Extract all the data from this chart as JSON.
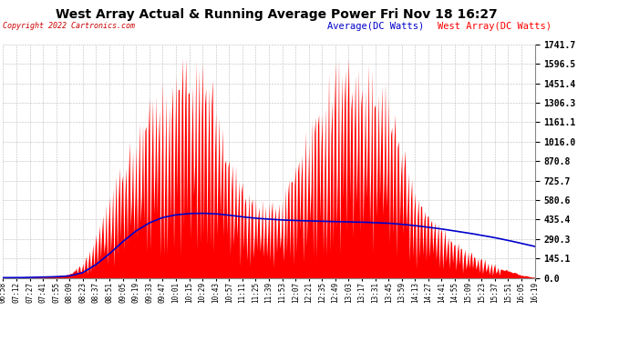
{
  "title": "West Array Actual & Running Average Power Fri Nov 18 16:27",
  "copyright": "Copyright 2022 Cartronics.com",
  "legend_avg": "Average(DC Watts)",
  "legend_west": "West Array(DC Watts)",
  "ylabel_right_ticks": [
    0.0,
    145.1,
    290.3,
    435.4,
    580.6,
    725.7,
    870.8,
    1016.0,
    1161.1,
    1306.3,
    1451.4,
    1596.5,
    1741.7
  ],
  "ymax": 1741.7,
  "ymin": 0.0,
  "background_color": "#ffffff",
  "grid_color": "#bbbbbb",
  "fill_color": "#ff0000",
  "line_color": "#0000cc",
  "title_color": "#000000",
  "copyright_color": "#cc0000",
  "avg_label_color": "#0000cc",
  "west_label_color": "#ff0000",
  "xtick_labels": [
    "06:58",
    "07:12",
    "07:27",
    "07:41",
    "07:55",
    "08:09",
    "08:23",
    "08:37",
    "08:51",
    "09:05",
    "09:19",
    "09:33",
    "09:47",
    "10:01",
    "10:15",
    "10:29",
    "10:43",
    "10:57",
    "11:11",
    "11:25",
    "11:39",
    "11:53",
    "12:07",
    "12:21",
    "12:35",
    "12:49",
    "13:03",
    "13:17",
    "13:31",
    "13:45",
    "13:59",
    "14:13",
    "14:27",
    "14:41",
    "14:55",
    "15:09",
    "15:23",
    "15:37",
    "15:51",
    "16:05",
    "16:19"
  ],
  "west_envelope": [
    2,
    2,
    5,
    8,
    15,
    30,
    120,
    320,
    600,
    900,
    1100,
    1300,
    1450,
    1550,
    1620,
    1680,
    1380,
    900,
    700,
    600,
    550,
    600,
    900,
    1100,
    1400,
    1550,
    1600,
    1580,
    1520,
    1400,
    1050,
    700,
    500,
    380,
    280,
    200,
    150,
    100,
    60,
    25,
    5
  ],
  "avg_values": [
    2,
    2,
    4,
    6,
    9,
    15,
    40,
    100,
    180,
    270,
    350,
    410,
    450,
    470,
    480,
    482,
    478,
    468,
    455,
    445,
    438,
    432,
    428,
    425,
    422,
    420,
    418,
    416,
    412,
    408,
    400,
    390,
    378,
    365,
    350,
    335,
    318,
    300,
    280,
    258,
    235
  ],
  "spike_pattern": [
    0.15,
    0.9,
    0.25,
    0.95,
    0.2,
    0.85,
    0.3,
    0.92,
    0.18,
    0.88,
    0.22,
    0.91,
    0.28,
    0.87,
    0.15,
    0.93,
    0.25,
    0.82,
    0.3,
    0.88
  ]
}
